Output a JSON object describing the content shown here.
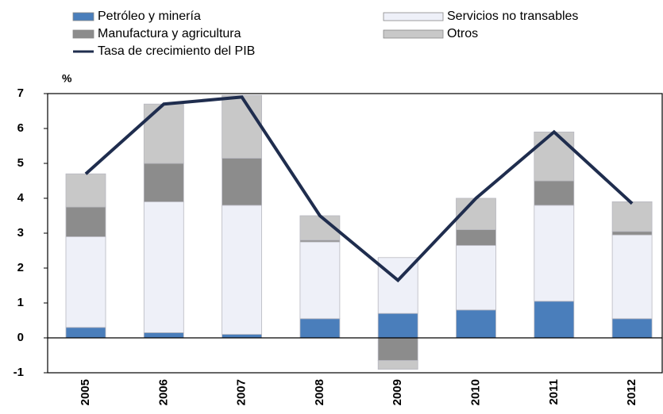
{
  "chart_data": {
    "type": "bar",
    "stacked": true,
    "ylabel": "%",
    "categories": [
      "2005",
      "2006",
      "2007",
      "2008",
      "2009",
      "2010",
      "2011",
      "2012"
    ],
    "series": [
      {
        "name": "Petróleo y minería",
        "color": "#4a7ebb",
        "values": [
          0.3,
          0.15,
          0.1,
          0.55,
          0.7,
          0.8,
          1.05,
          0.55
        ]
      },
      {
        "name": "Servicios no transables",
        "color": "#eef0f8",
        "values": [
          2.6,
          3.75,
          3.7,
          2.2,
          1.6,
          1.85,
          2.75,
          2.4
        ]
      },
      {
        "name": "Manufactura y agricultura",
        "color": "#8c8c8c",
        "values": [
          0.85,
          1.1,
          1.35,
          0.05,
          -0.65,
          0.45,
          0.7,
          0.1
        ]
      },
      {
        "name": "Otros",
        "color": "#c8c8c8",
        "values": [
          0.95,
          1.7,
          1.8,
          0.7,
          -0.25,
          0.9,
          1.4,
          0.85
        ]
      },
      {
        "name": "Tasa de crecimiento del PIB",
        "type": "line",
        "color": "#1f2d4e",
        "values": [
          4.7,
          6.7,
          6.9,
          3.5,
          1.65,
          4.0,
          5.9,
          3.85
        ]
      }
    ],
    "ylim": [
      -1,
      7
    ],
    "yticks": [
      -1,
      0,
      1,
      2,
      3,
      4,
      5,
      6,
      7
    ]
  }
}
